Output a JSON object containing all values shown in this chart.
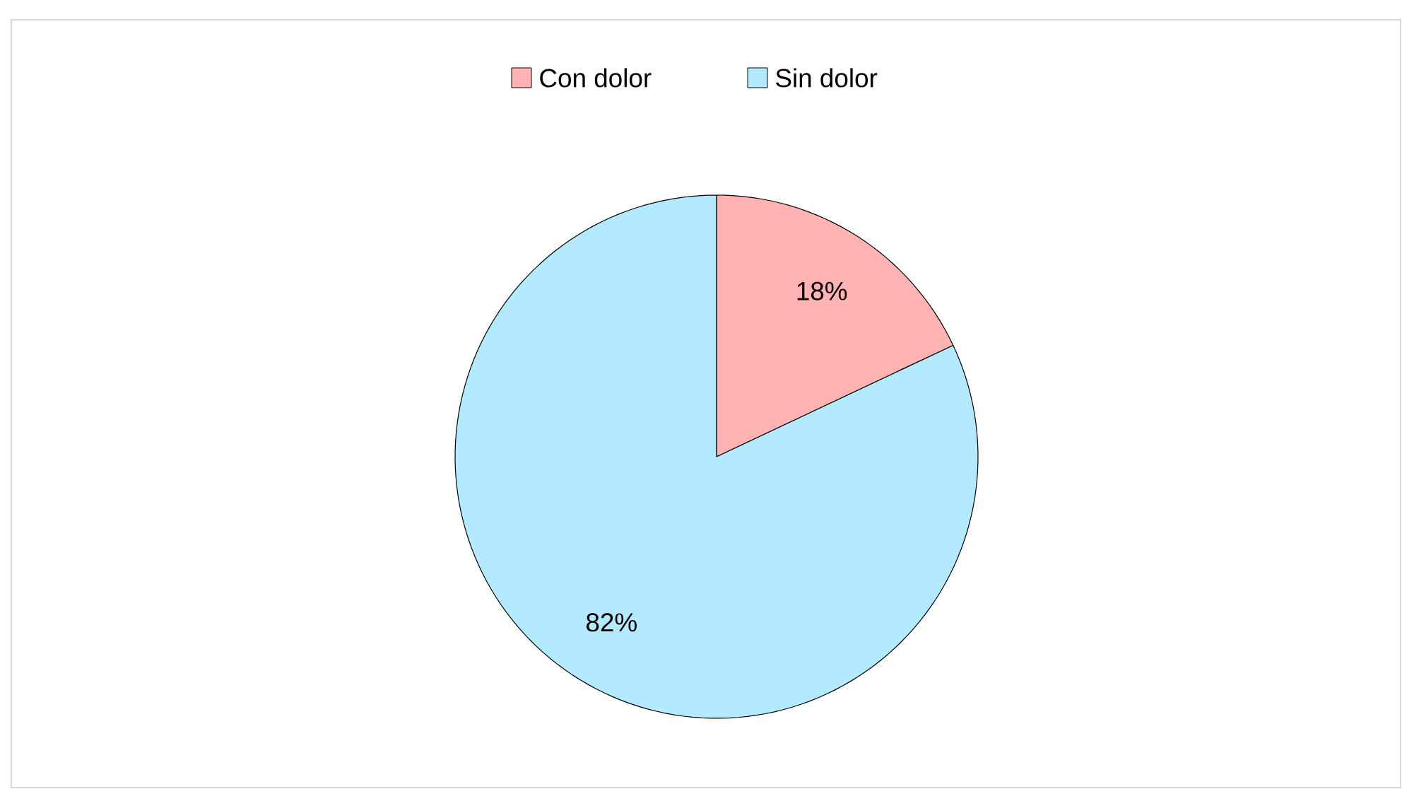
{
  "chart_data": {
    "type": "pie",
    "categories": [
      "Con dolor",
      "Sin dolor"
    ],
    "values": [
      18,
      82
    ],
    "colors": [
      "#ffb3b3",
      "#b3eaff"
    ],
    "value_labels": [
      "18%",
      "82%"
    ],
    "legend": "top"
  }
}
